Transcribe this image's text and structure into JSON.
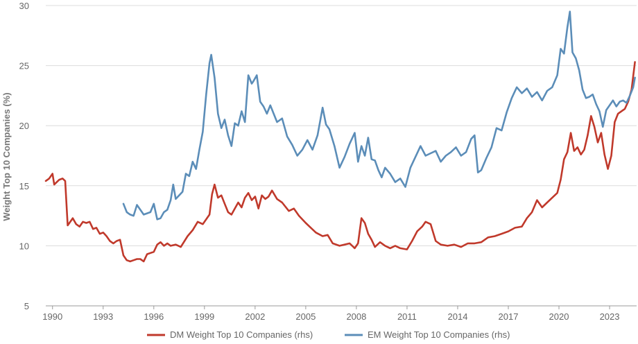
{
  "chart_data": {
    "type": "line",
    "ylabel": "Weight Top 10 Companies (%)",
    "ylim": [
      5,
      30
    ],
    "yticks": [
      5,
      10,
      15,
      20,
      25,
      30
    ],
    "xlim": [
      1989.6,
      2024.6
    ],
    "xticks": [
      1990,
      1993,
      1996,
      1999,
      2002,
      2005,
      2008,
      2011,
      2014,
      2017,
      2020,
      2023
    ],
    "grid": "horizontal",
    "legend_position": "bottom",
    "series": [
      {
        "name": "DM Weight Top 10 Companies (rhs)",
        "color": "#c0392b",
        "x": [
          1989.6,
          1989.8,
          1990.0,
          1990.1,
          1990.25,
          1990.4,
          1990.6,
          1990.75,
          1990.9,
          1991.0,
          1991.2,
          1991.4,
          1991.6,
          1991.8,
          1992.0,
          1992.2,
          1992.4,
          1992.6,
          1992.8,
          1993.0,
          1993.2,
          1993.4,
          1993.6,
          1993.8,
          1994.0,
          1994.2,
          1994.4,
          1994.6,
          1994.8,
          1995.0,
          1995.2,
          1995.4,
          1995.6,
          1995.8,
          1996.0,
          1996.2,
          1996.4,
          1996.6,
          1996.8,
          1997.0,
          1997.3,
          1997.6,
          1998.0,
          1998.3,
          1998.6,
          1998.9,
          1999.1,
          1999.3,
          1999.45,
          1999.6,
          1999.8,
          2000.0,
          2000.2,
          2000.4,
          2000.6,
          2000.8,
          2001.0,
          2001.2,
          2001.4,
          2001.6,
          2001.8,
          2002.0,
          2002.2,
          2002.4,
          2002.6,
          2002.8,
          2003.0,
          2003.3,
          2003.6,
          2004.0,
          2004.3,
          2004.6,
          2005.0,
          2005.3,
          2005.6,
          2006.0,
          2006.3,
          2006.6,
          2007.0,
          2007.3,
          2007.6,
          2007.9,
          2008.1,
          2008.3,
          2008.5,
          2008.7,
          2008.9,
          2009.1,
          2009.4,
          2009.7,
          2010.0,
          2010.3,
          2010.6,
          2011.0,
          2011.3,
          2011.6,
          2011.9,
          2012.1,
          2012.4,
          2012.7,
          2013.0,
          2013.4,
          2013.8,
          2014.2,
          2014.6,
          2015.0,
          2015.4,
          2015.8,
          2016.2,
          2016.6,
          2017.0,
          2017.4,
          2017.8,
          2018.1,
          2018.4,
          2018.7,
          2019.0,
          2019.3,
          2019.6,
          2019.9,
          2020.1,
          2020.3,
          2020.5,
          2020.7,
          2020.9,
          2021.1,
          2021.3,
          2021.5,
          2021.7,
          2021.9,
          2022.1,
          2022.3,
          2022.5,
          2022.7,
          2022.9,
          2023.1,
          2023.3,
          2023.5,
          2023.7,
          2023.9,
          2024.1,
          2024.3,
          2024.5
        ],
        "y": [
          15.4,
          15.6,
          16.0,
          15.1,
          15.3,
          15.5,
          15.6,
          15.4,
          11.7,
          11.9,
          12.3,
          11.8,
          11.6,
          12.0,
          11.9,
          12.0,
          11.4,
          11.5,
          11.0,
          11.1,
          10.8,
          10.4,
          10.2,
          10.4,
          10.5,
          9.2,
          8.8,
          8.7,
          8.8,
          8.9,
          8.9,
          8.7,
          9.3,
          9.4,
          9.5,
          10.1,
          10.3,
          10.0,
          10.2,
          10.0,
          10.1,
          9.9,
          10.8,
          11.3,
          12.0,
          11.8,
          12.2,
          12.6,
          14.3,
          15.1,
          14.0,
          14.2,
          13.5,
          12.8,
          12.6,
          13.1,
          13.6,
          13.2,
          14.0,
          14.4,
          13.8,
          14.1,
          13.1,
          14.2,
          13.9,
          14.1,
          14.6,
          13.9,
          13.6,
          12.9,
          13.1,
          12.5,
          11.9,
          11.5,
          11.1,
          10.8,
          10.9,
          10.2,
          10.0,
          10.1,
          10.2,
          9.8,
          10.2,
          12.3,
          11.9,
          11.0,
          10.5,
          9.9,
          10.3,
          10.0,
          9.8,
          10.0,
          9.8,
          9.7,
          10.4,
          11.2,
          11.6,
          12.0,
          11.8,
          10.4,
          10.1,
          10.0,
          10.1,
          9.9,
          10.2,
          10.2,
          10.3,
          10.7,
          10.8,
          11.0,
          11.2,
          11.5,
          11.6,
          12.3,
          12.8,
          13.8,
          13.2,
          13.6,
          14.0,
          14.4,
          15.5,
          17.2,
          17.8,
          19.4,
          17.9,
          18.2,
          17.6,
          18.0,
          19.2,
          20.8,
          19.9,
          18.6,
          19.4,
          17.6,
          16.4,
          17.5,
          20.3,
          21.0,
          21.2,
          21.4,
          22.0,
          23.0,
          25.3
        ]
      },
      {
        "name": "EM Weight Top 10 Companies (rhs)",
        "color": "#5b8db8",
        "x": [
          1994.2,
          1994.4,
          1994.6,
          1994.8,
          1995.0,
          1995.2,
          1995.4,
          1995.6,
          1995.8,
          1996.0,
          1996.2,
          1996.4,
          1996.6,
          1996.8,
          1997.0,
          1997.15,
          1997.3,
          1997.5,
          1997.7,
          1997.9,
          1998.1,
          1998.3,
          1998.5,
          1998.7,
          1998.9,
          1999.1,
          1999.3,
          1999.4,
          1999.6,
          1999.8,
          2000.0,
          2000.2,
          2000.4,
          2000.6,
          2000.8,
          2001.0,
          2001.2,
          2001.4,
          2001.6,
          2001.8,
          2001.9,
          2002.1,
          2002.3,
          2002.5,
          2002.7,
          2002.9,
          2003.1,
          2003.3,
          2003.6,
          2003.9,
          2004.2,
          2004.5,
          2004.8,
          2005.1,
          2005.4,
          2005.7,
          2006.0,
          2006.2,
          2006.4,
          2006.7,
          2007.0,
          2007.3,
          2007.6,
          2007.9,
          2008.1,
          2008.3,
          2008.5,
          2008.7,
          2008.9,
          2009.1,
          2009.3,
          2009.5,
          2009.7,
          2010.0,
          2010.3,
          2010.6,
          2010.9,
          2011.2,
          2011.5,
          2011.8,
          2012.1,
          2012.4,
          2012.7,
          2013.0,
          2013.3,
          2013.6,
          2013.9,
          2014.2,
          2014.5,
          2014.8,
          2015.0,
          2015.2,
          2015.4,
          2015.7,
          2016.0,
          2016.3,
          2016.6,
          2016.9,
          2017.2,
          2017.5,
          2017.8,
          2018.1,
          2018.4,
          2018.7,
          2019.0,
          2019.3,
          2019.6,
          2019.9,
          2020.1,
          2020.3,
          2020.5,
          2020.65,
          2020.8,
          2021.0,
          2021.2,
          2021.4,
          2021.6,
          2021.8,
          2022.0,
          2022.2,
          2022.4,
          2022.6,
          2022.8,
          2023.0,
          2023.2,
          2023.4,
          2023.6,
          2023.8,
          2024.0,
          2024.2,
          2024.4,
          2024.5
        ],
        "y": [
          13.5,
          12.8,
          12.6,
          12.5,
          13.4,
          13.0,
          12.6,
          12.7,
          12.8,
          13.5,
          12.2,
          12.3,
          12.8,
          13.0,
          13.8,
          15.1,
          13.9,
          14.2,
          14.5,
          16.0,
          15.8,
          17.0,
          16.4,
          18.0,
          19.5,
          22.6,
          25.2,
          25.9,
          24.0,
          21.0,
          19.8,
          20.5,
          19.2,
          18.3,
          20.2,
          20.0,
          21.2,
          20.3,
          24.2,
          23.5,
          23.7,
          24.2,
          22.0,
          21.6,
          21.0,
          21.7,
          21.0,
          20.3,
          20.6,
          19.1,
          18.4,
          17.5,
          18.0,
          18.8,
          18.0,
          19.2,
          21.5,
          20.1,
          19.7,
          18.3,
          16.5,
          17.4,
          18.5,
          19.4,
          17.0,
          18.3,
          17.5,
          19.0,
          17.2,
          17.1,
          16.3,
          15.7,
          16.5,
          16.0,
          15.3,
          15.6,
          14.9,
          16.5,
          17.4,
          18.3,
          17.5,
          17.7,
          17.9,
          17.0,
          17.5,
          17.8,
          18.2,
          17.5,
          17.8,
          18.9,
          19.2,
          16.1,
          16.3,
          17.3,
          18.2,
          19.8,
          19.6,
          21.1,
          22.3,
          23.2,
          22.7,
          23.1,
          22.4,
          22.8,
          22.1,
          22.9,
          23.2,
          24.2,
          26.4,
          26.0,
          28.2,
          29.5,
          26.1,
          25.6,
          24.6,
          23.0,
          22.3,
          22.4,
          22.6,
          21.8,
          21.2,
          19.9,
          21.3,
          21.7,
          22.1,
          21.6,
          22.0,
          22.1,
          21.9,
          22.5,
          23.2,
          24.0
        ]
      }
    ]
  }
}
